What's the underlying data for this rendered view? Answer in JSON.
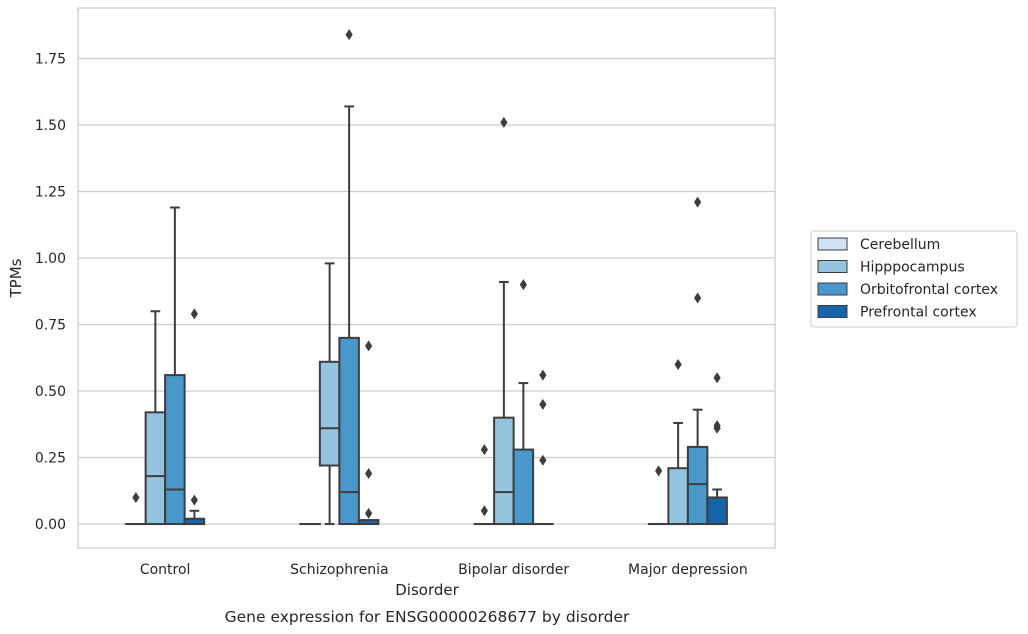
{
  "chart_data": {
    "type": "box",
    "title": "",
    "caption": "Gene expression for ENSG00000268677 by disorder",
    "xlabel": "Disorder",
    "ylabel": "TPMs",
    "ylim": [
      -0.09,
      1.94
    ],
    "yticks": [
      "0.00",
      "0.25",
      "0.50",
      "0.75",
      "1.00",
      "1.25",
      "1.50",
      "1.75"
    ],
    "grid": true,
    "legend_position": "right",
    "categories": [
      "Control",
      "Schizophrenia",
      "Bipolar disorder",
      "Major depression"
    ],
    "series": [
      {
        "name": "Cerebellum",
        "color": "#d0e1f2",
        "boxes": [
          {
            "q1": 0,
            "median": 0,
            "q3": 0,
            "whisker_low": 0,
            "whisker_high": 0,
            "outliers": [
              0.1
            ]
          },
          {
            "q1": 0,
            "median": 0,
            "q3": 0,
            "whisker_low": 0,
            "whisker_high": 0,
            "outliers": []
          },
          {
            "q1": 0,
            "median": 0,
            "q3": 0,
            "whisker_low": 0,
            "whisker_high": 0,
            "outliers": [
              0.05,
              0.28
            ]
          },
          {
            "q1": 0,
            "median": 0,
            "q3": 0,
            "whisker_low": 0,
            "whisker_high": 0,
            "outliers": [
              0.2
            ]
          }
        ]
      },
      {
        "name": "Hipppocampus",
        "color": "#94c4df",
        "boxes": [
          {
            "q1": 0,
            "median": 0.18,
            "q3": 0.42,
            "whisker_low": 0,
            "whisker_high": 0.8,
            "outliers": []
          },
          {
            "q1": 0.22,
            "median": 0.36,
            "q3": 0.61,
            "whisker_low": 0,
            "whisker_high": 0.98,
            "outliers": []
          },
          {
            "q1": 0,
            "median": 0.12,
            "q3": 0.4,
            "whisker_low": 0,
            "whisker_high": 0.91,
            "outliers": [
              1.51
            ]
          },
          {
            "q1": 0,
            "median": 0,
            "q3": 0.21,
            "whisker_low": 0,
            "whisker_high": 0.38,
            "outliers": [
              0.6
            ]
          }
        ]
      },
      {
        "name": "Orbitofrontal cortex",
        "color": "#4a98c9",
        "boxes": [
          {
            "q1": 0,
            "median": 0.13,
            "q3": 0.56,
            "whisker_low": 0,
            "whisker_high": 1.19,
            "outliers": []
          },
          {
            "q1": 0,
            "median": 0.12,
            "q3": 0.7,
            "whisker_low": 0,
            "whisker_high": 1.57,
            "outliers": [
              1.84
            ]
          },
          {
            "q1": 0,
            "median": 0,
            "q3": 0.28,
            "whisker_low": 0,
            "whisker_high": 0.53,
            "outliers": [
              0.9
            ]
          },
          {
            "q1": 0,
            "median": 0.15,
            "q3": 0.29,
            "whisker_low": 0,
            "whisker_high": 0.43,
            "outliers": [
              0.85,
              1.21
            ]
          }
        ]
      },
      {
        "name": "Prefrontal cortex",
        "color": "#1764ab",
        "boxes": [
          {
            "q1": 0,
            "median": 0,
            "q3": 0.02,
            "whisker_low": 0,
            "whisker_high": 0.05,
            "outliers": [
              0.09,
              0.79
            ]
          },
          {
            "q1": 0,
            "median": 0,
            "q3": 0.015,
            "whisker_low": 0,
            "whisker_high": 0.015,
            "outliers": [
              0.04,
              0.19,
              0.67
            ]
          },
          {
            "q1": 0,
            "median": 0,
            "q3": 0,
            "whisker_low": 0,
            "whisker_high": 0,
            "outliers": [
              0.24,
              0.45,
              0.56
            ]
          },
          {
            "q1": 0,
            "median": 0,
            "q3": 0.1,
            "whisker_low": 0,
            "whisker_high": 0.13,
            "outliers": [
              0.36,
              0.37,
              0.55
            ]
          }
        ]
      }
    ]
  }
}
